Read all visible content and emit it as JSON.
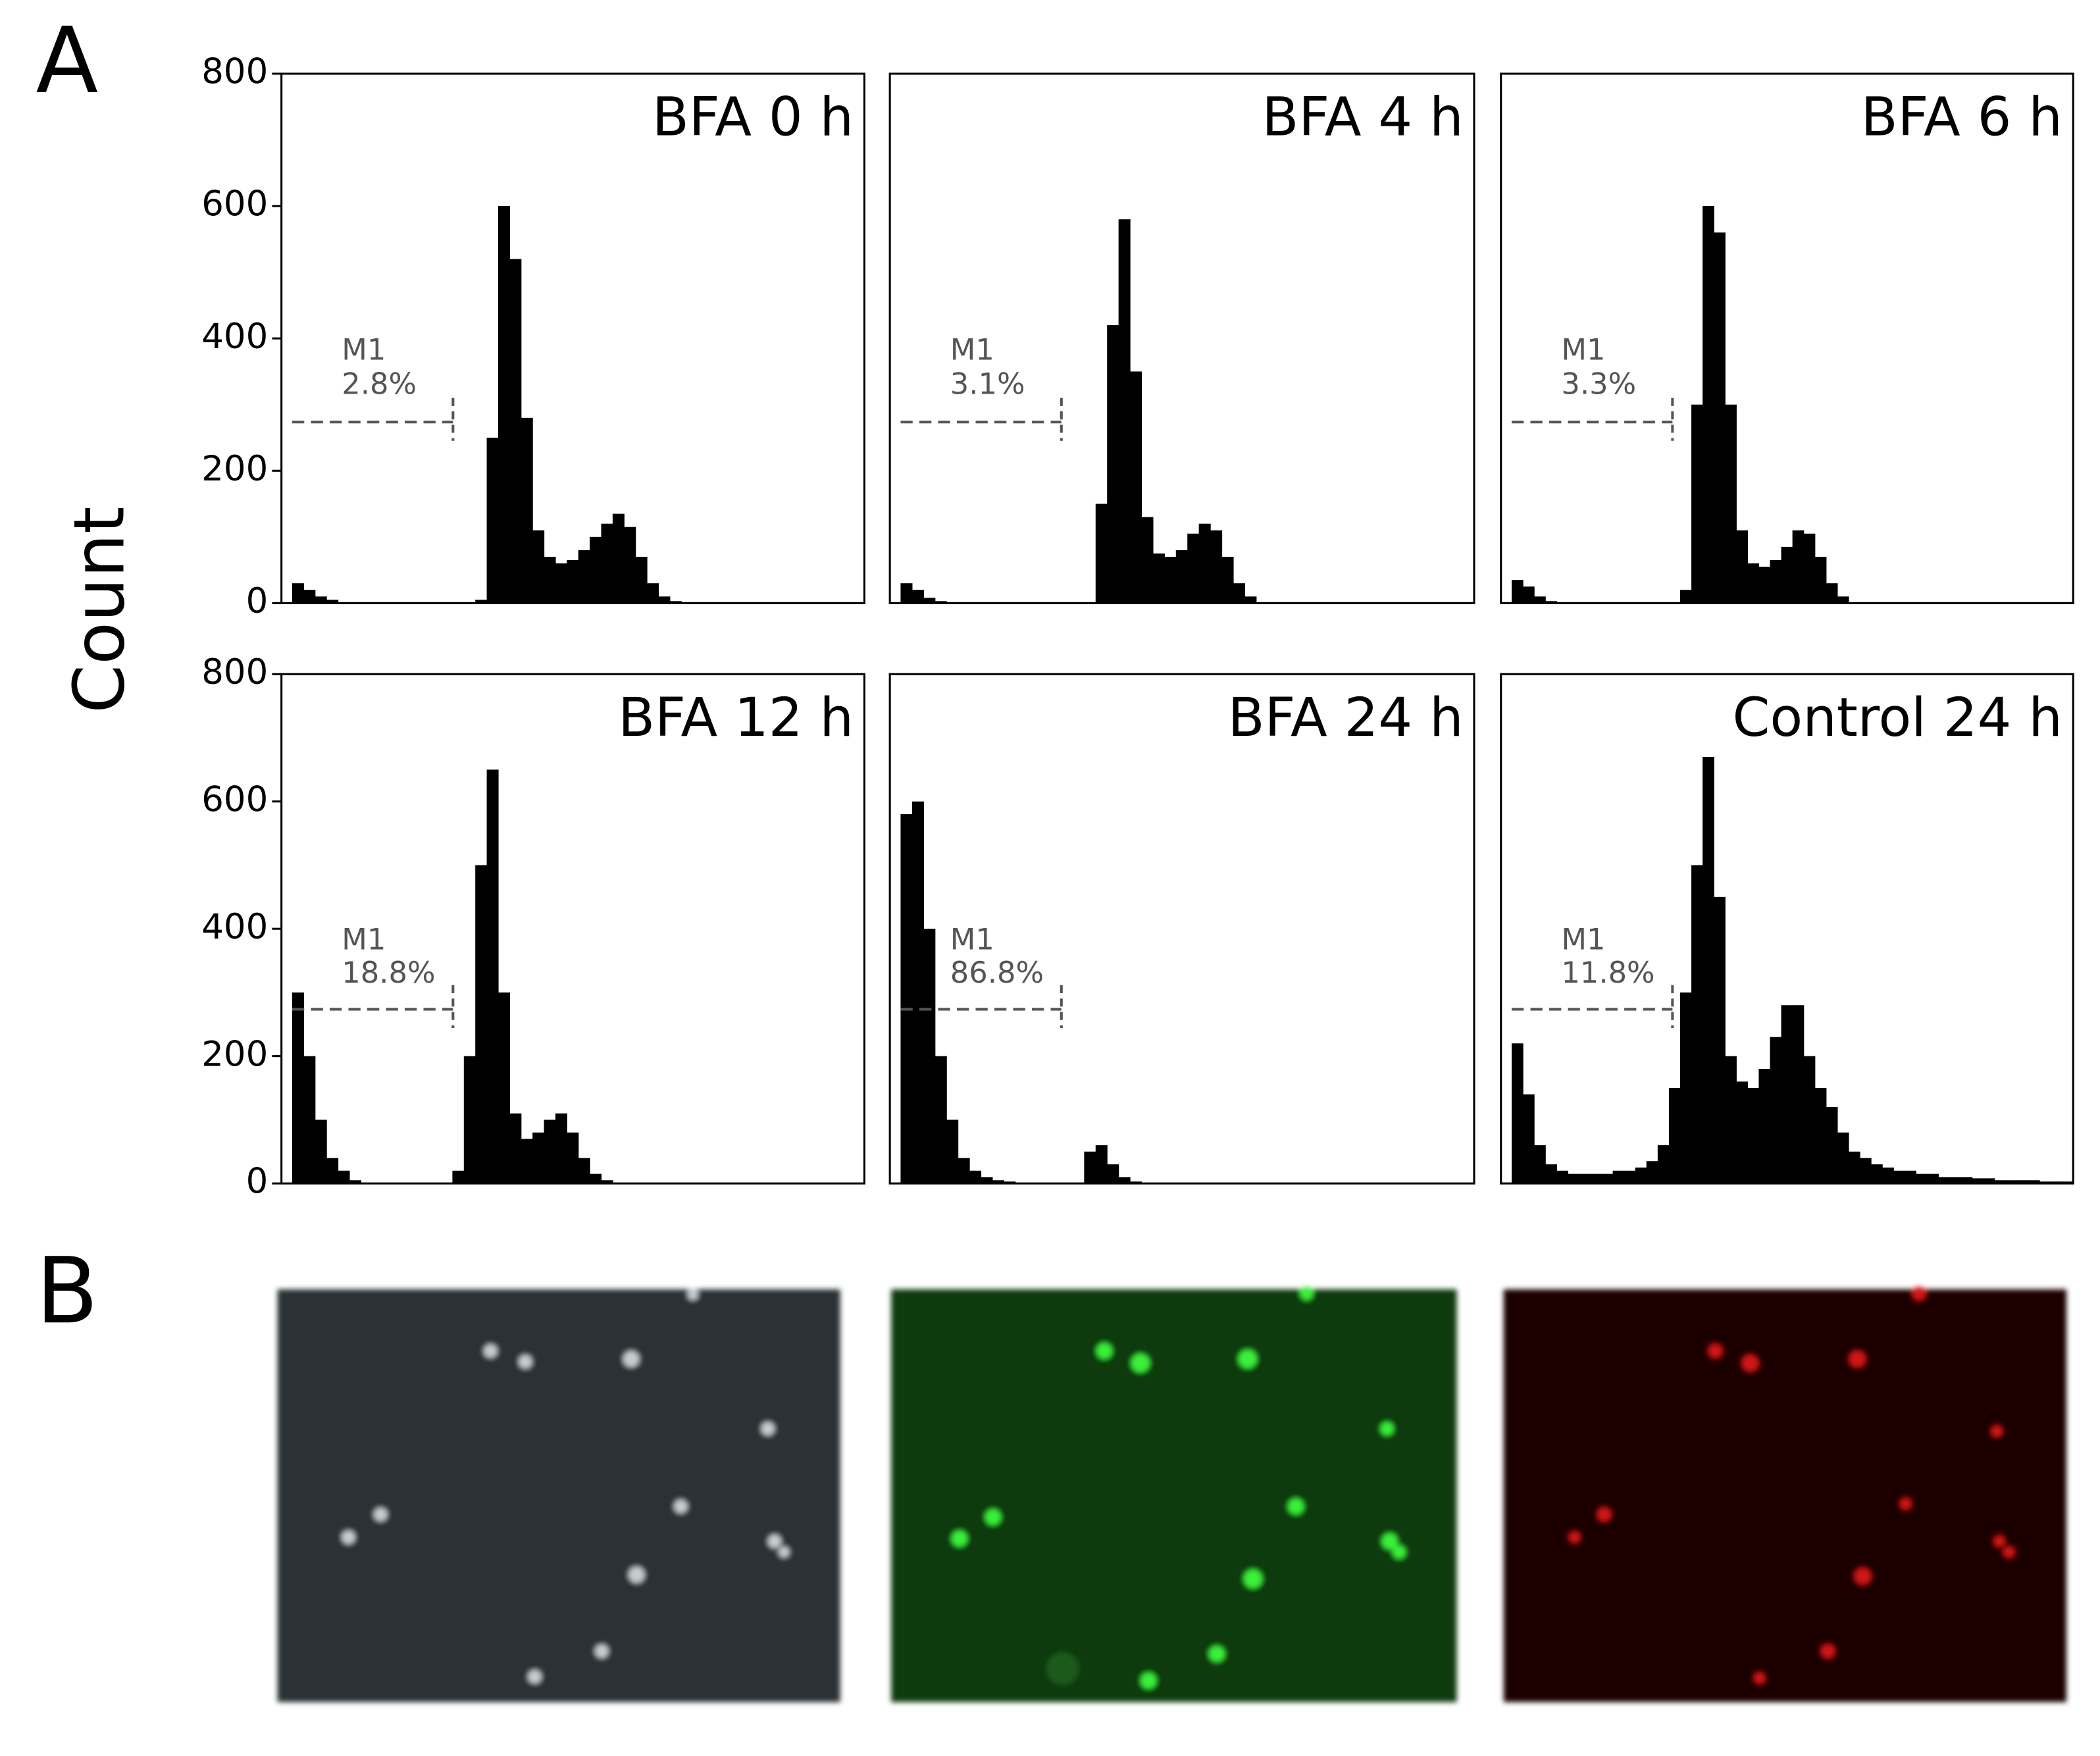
{
  "figure": {
    "panel_labels": [
      "A",
      "B"
    ],
    "ylabel": "Count"
  },
  "chart_data": [
    {
      "type": "histogram",
      "title": "BFA 0 h",
      "marker": {
        "label": "M1",
        "percent": "2.8%"
      },
      "color": "#000000",
      "ylim": [
        0,
        800
      ],
      "yticks": [
        0,
        200,
        400,
        600,
        800
      ],
      "values": [
        30,
        20,
        10,
        5,
        0,
        0,
        0,
        0,
        0,
        0,
        0,
        0,
        0,
        0,
        0,
        0,
        5,
        250,
        600,
        520,
        280,
        110,
        70,
        60,
        65,
        80,
        100,
        120,
        135,
        115,
        70,
        30,
        10,
        3,
        0,
        0,
        0,
        0,
        0,
        0,
        0,
        0,
        0,
        0,
        0,
        0,
        0,
        0,
        0,
        0
      ]
    },
    {
      "type": "histogram",
      "title": "BFA 4 h",
      "marker": {
        "label": "M1",
        "percent": "3.1%"
      },
      "color": "#000000",
      "ylim": [
        0,
        800
      ],
      "values": [
        30,
        20,
        8,
        3,
        0,
        0,
        0,
        0,
        0,
        0,
        0,
        0,
        0,
        0,
        0,
        0,
        0,
        150,
        420,
        580,
        350,
        130,
        75,
        70,
        80,
        105,
        120,
        110,
        70,
        30,
        10,
        0,
        0,
        0,
        0,
        0,
        0,
        0,
        0,
        0,
        0,
        0,
        0,
        0,
        0,
        0,
        0,
        0,
        0,
        0
      ]
    },
    {
      "type": "histogram",
      "title": "BFA 6 h",
      "marker": {
        "label": "M1",
        "percent": "3.3%"
      },
      "color": "#000000",
      "ylim": [
        0,
        800
      ],
      "values": [
        35,
        25,
        10,
        3,
        0,
        0,
        0,
        0,
        0,
        0,
        0,
        0,
        0,
        0,
        0,
        20,
        300,
        600,
        560,
        300,
        110,
        60,
        55,
        65,
        85,
        110,
        105,
        70,
        30,
        10,
        0,
        0,
        0,
        0,
        0,
        0,
        0,
        0,
        0,
        0,
        0,
        0,
        0,
        0,
        0,
        0,
        0,
        0,
        0,
        0
      ]
    },
    {
      "type": "histogram",
      "title": "BFA 12 h",
      "marker": {
        "label": "M1",
        "percent": "18.8%"
      },
      "color": "#000000",
      "ylim": [
        0,
        800
      ],
      "yticks": [
        0,
        200,
        400,
        600,
        800
      ],
      "values": [
        300,
        200,
        100,
        40,
        20,
        5,
        0,
        0,
        0,
        0,
        0,
        0,
        0,
        0,
        20,
        200,
        500,
        650,
        300,
        110,
        70,
        80,
        100,
        110,
        80,
        40,
        15,
        5,
        0,
        0,
        0,
        0,
        0,
        0,
        0,
        0,
        0,
        0,
        0,
        0,
        0,
        0,
        0,
        0,
        0,
        0,
        0,
        0,
        0,
        0
      ]
    },
    {
      "type": "histogram",
      "title": "BFA 24 h",
      "marker": {
        "label": "M1",
        "percent": "86.8%"
      },
      "color": "#000000",
      "ylim": [
        0,
        800
      ],
      "values": [
        580,
        600,
        400,
        200,
        100,
        40,
        20,
        10,
        5,
        3,
        0,
        0,
        0,
        0,
        0,
        0,
        50,
        60,
        30,
        10,
        3,
        0,
        0,
        0,
        0,
        0,
        0,
        0,
        0,
        0,
        0,
        0,
        0,
        0,
        0,
        0,
        0,
        0,
        0,
        0,
        0,
        0,
        0,
        0,
        0,
        0,
        0,
        0,
        0,
        0
      ]
    },
    {
      "type": "histogram",
      "title": "Control 24 h",
      "marker": {
        "label": "M1",
        "percent": "11.8%"
      },
      "color": "#000000",
      "ylim": [
        0,
        800
      ],
      "values": [
        220,
        140,
        60,
        30,
        20,
        15,
        15,
        15,
        15,
        20,
        20,
        25,
        35,
        60,
        150,
        300,
        500,
        670,
        450,
        200,
        160,
        150,
        180,
        230,
        280,
        280,
        200,
        150,
        120,
        80,
        50,
        40,
        30,
        25,
        20,
        20,
        15,
        15,
        10,
        10,
        10,
        8,
        8,
        5,
        5,
        5,
        5,
        3,
        3,
        3
      ]
    }
  ]
}
